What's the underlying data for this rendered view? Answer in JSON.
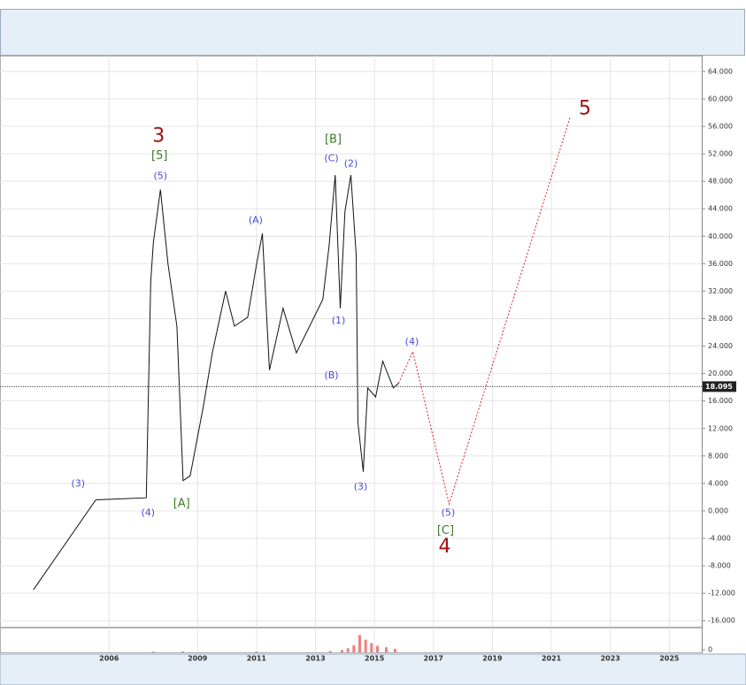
{
  "chart_data": {
    "type": "line",
    "xlim": [
      2002.3,
      2026.1
    ],
    "ylim": [
      -17,
      66.3
    ],
    "xticks": [
      2006,
      2009,
      2011,
      2013,
      2015,
      2017,
      2019,
      2021,
      2023,
      2025
    ],
    "yticks": [
      {
        "value": 64,
        "label": "64.000"
      },
      {
        "value": 60,
        "label": "60.000"
      },
      {
        "value": 56,
        "label": "56.000"
      },
      {
        "value": 52,
        "label": "52.000"
      },
      {
        "value": 48,
        "label": "48.000"
      },
      {
        "value": 44,
        "label": "44.000"
      },
      {
        "value": 40,
        "label": "40.000"
      },
      {
        "value": 36,
        "label": "36.000"
      },
      {
        "value": 32,
        "label": "32.000"
      },
      {
        "value": 28,
        "label": "28.000"
      },
      {
        "value": 24,
        "label": "24.000"
      },
      {
        "value": 20,
        "label": "20.000"
      },
      {
        "value": 16,
        "label": "16.000"
      },
      {
        "value": 12,
        "label": "12.000"
      },
      {
        "value": 8,
        "label": "8.000"
      },
      {
        "value": 4,
        "label": "4.000"
      },
      {
        "value": 0,
        "label": "0.000"
      },
      {
        "value": -4,
        "label": "-4.000"
      },
      {
        "value": -8,
        "label": "-8.000"
      },
      {
        "value": -12,
        "label": "-12.000"
      },
      {
        "value": -16,
        "label": "-16.000"
      }
    ],
    "grid": true,
    "price": {
      "color": "#111111",
      "x": [
        2003.43,
        2005.55,
        2007.26,
        2007.41,
        2007.5,
        2007.74,
        2008.0,
        2008.3,
        2008.51,
        2008.75,
        2009.2,
        2009.5,
        2009.95,
        2010.25,
        2010.7,
        2011.0,
        2011.2,
        2011.44,
        2011.9,
        2012.35,
        2012.8,
        2013.25,
        2013.46,
        2013.67,
        2013.84,
        2014.0,
        2014.2,
        2014.38,
        2014.44,
        2014.62,
        2014.77,
        2015.04,
        2015.28,
        2015.64,
        2015.82
      ],
      "values": [
        -11.5,
        1.6,
        1.9,
        33.3,
        39.1,
        46.8,
        35.9,
        26.9,
        4.4,
        5.1,
        15.3,
        23.0,
        32.0,
        26.9,
        28.2,
        35.9,
        40.4,
        20.5,
        29.5,
        23.0,
        26.9,
        30.8,
        38.5,
        48.9,
        29.5,
        43.6,
        48.9,
        37.2,
        12.8,
        5.7,
        17.9,
        16.6,
        21.8,
        17.9,
        18.6
      ]
    },
    "projection": {
      "color": "#e02020",
      "x": [
        2015.82,
        2016.3,
        2017.53,
        2021.63
      ],
      "values": [
        18.6,
        23.2,
        1.0,
        57.3
      ]
    },
    "last_price": {
      "value": 18.095,
      "label": "18.095"
    },
    "volume": {
      "color": "#f08080",
      "x": [
        2007.5,
        2008.5,
        2011.0,
        2013.5,
        2013.9,
        2014.1,
        2014.3,
        2014.5,
        2014.7,
        2014.9,
        2015.1,
        2015.4,
        2015.7
      ],
      "values": [
        3,
        4,
        3,
        6,
        10,
        18,
        30,
        75,
        55,
        40,
        28,
        22,
        15
      ],
      "ylim": [
        0,
        100
      ],
      "yticks": [
        0
      ]
    },
    "annotations": [
      {
        "text": "3",
        "x": 2007.68,
        "y": 54.5,
        "color": "#a01010",
        "size": 22
      },
      {
        "text": "[5]",
        "x": 2007.71,
        "y": 51.7,
        "color": "#3a7a2a",
        "size": 13
      },
      {
        "text": "(5)",
        "x": 2007.74,
        "y": 48.7,
        "color": "#4a4ad8",
        "size": 11
      },
      {
        "text": "(3)",
        "x": 2004.95,
        "y": 3.9,
        "color": "#4a4ad8",
        "size": 11
      },
      {
        "text": "(4)",
        "x": 2007.32,
        "y": -0.3,
        "color": "#4a4ad8",
        "size": 11
      },
      {
        "text": "[A]",
        "x": 2008.46,
        "y": 1.0,
        "color": "#3a7a2a",
        "size": 13
      },
      {
        "text": "(A)",
        "x": 2010.97,
        "y": 42.3,
        "color": "#4a4ad8",
        "size": 11
      },
      {
        "text": "[B]",
        "x": 2013.6,
        "y": 54.1,
        "color": "#3a7a2a",
        "size": 13
      },
      {
        "text": "(C)",
        "x": 2013.54,
        "y": 51.3,
        "color": "#4a4ad8",
        "size": 11
      },
      {
        "text": "(2)",
        "x": 2014.2,
        "y": 50.5,
        "color": "#4a4ad8",
        "size": 11
      },
      {
        "text": "(1)",
        "x": 2013.78,
        "y": 27.7,
        "color": "#4a4ad8",
        "size": 11
      },
      {
        "text": "(B)",
        "x": 2013.54,
        "y": 19.7,
        "color": "#4a4ad8",
        "size": 11
      },
      {
        "text": "(3)",
        "x": 2014.53,
        "y": 3.5,
        "color": "#4a4ad8",
        "size": 11
      },
      {
        "text": "(4)",
        "x": 2016.27,
        "y": 24.6,
        "color": "#4a4ad8",
        "size": 11
      },
      {
        "text": "(5)",
        "x": 2017.5,
        "y": -0.3,
        "color": "#4a4ad8",
        "size": 11
      },
      {
        "text": "[C]",
        "x": 2017.41,
        "y": -2.9,
        "color": "#3a7a2a",
        "size": 13
      },
      {
        "text": "4",
        "x": 2017.38,
        "y": -5.3,
        "color": "#a01010",
        "size": 22
      },
      {
        "text": "5",
        "x": 2022.14,
        "y": 58.5,
        "color": "#a01010",
        "size": 22
      }
    ]
  }
}
